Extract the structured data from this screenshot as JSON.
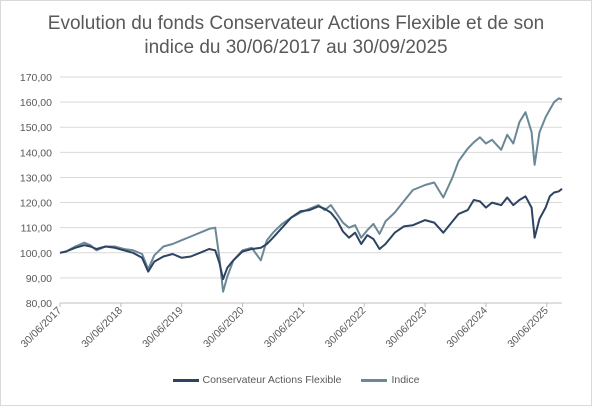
{
  "chart_data": {
    "type": "line",
    "title_line1": "Evolution du fonds Conservateur Actions Flexible et de son",
    "title_line2": "indice du 30/06/2017 au 30/09/2025",
    "x_ticks": [
      "30/06/2017",
      "30/06/2018",
      "30/06/2019",
      "30/06/2020",
      "30/06/2021",
      "30/06/2022",
      "30/06/2023",
      "30/06/2024",
      "30/06/2025"
    ],
    "y_ticks": [
      "80,00",
      "90,00",
      "100,00",
      "110,00",
      "120,00",
      "130,00",
      "140,00",
      "150,00",
      "160,00",
      "170,00"
    ],
    "ylim": [
      80,
      170
    ],
    "xlim": [
      2017.5,
      2025.75
    ],
    "grid": true,
    "legend_position": "bottom",
    "series": [
      {
        "name": "Conservateur Actions Flexible",
        "color": "#2e4361",
        "points": [
          [
            2017.5,
            100.0
          ],
          [
            2017.6,
            100.5
          ],
          [
            2017.75,
            102.0
          ],
          [
            2017.9,
            103.0
          ],
          [
            2018.0,
            102.5
          ],
          [
            2018.1,
            101.5
          ],
          [
            2018.25,
            102.5
          ],
          [
            2018.4,
            102.0
          ],
          [
            2018.55,
            101.0
          ],
          [
            2018.7,
            100.0
          ],
          [
            2018.85,
            98.0
          ],
          [
            2018.95,
            92.5
          ],
          [
            2019.05,
            96.5
          ],
          [
            2019.2,
            98.5
          ],
          [
            2019.35,
            99.5
          ],
          [
            2019.5,
            98.0
          ],
          [
            2019.65,
            98.5
          ],
          [
            2019.8,
            100.0
          ],
          [
            2019.95,
            101.5
          ],
          [
            2020.05,
            101.0
          ],
          [
            2020.12,
            96.0
          ],
          [
            2020.18,
            89.5
          ],
          [
            2020.25,
            94.0
          ],
          [
            2020.35,
            97.0
          ],
          [
            2020.5,
            100.5
          ],
          [
            2020.65,
            101.5
          ],
          [
            2020.8,
            102.0
          ],
          [
            2020.9,
            103.5
          ],
          [
            2021.0,
            106.0
          ],
          [
            2021.15,
            110.0
          ],
          [
            2021.3,
            114.0
          ],
          [
            2021.45,
            116.5
          ],
          [
            2021.6,
            117.0
          ],
          [
            2021.75,
            118.5
          ],
          [
            2021.85,
            117.5
          ],
          [
            2021.95,
            116.0
          ],
          [
            2022.05,
            113.0
          ],
          [
            2022.15,
            108.5
          ],
          [
            2022.25,
            106.0
          ],
          [
            2022.35,
            108.0
          ],
          [
            2022.45,
            103.5
          ],
          [
            2022.55,
            107.0
          ],
          [
            2022.65,
            105.5
          ],
          [
            2022.75,
            101.5
          ],
          [
            2022.85,
            103.5
          ],
          [
            2023.0,
            108.0
          ],
          [
            2023.15,
            110.5
          ],
          [
            2023.3,
            111.0
          ],
          [
            2023.5,
            113.0
          ],
          [
            2023.65,
            112.0
          ],
          [
            2023.8,
            108.0
          ],
          [
            2023.95,
            112.5
          ],
          [
            2024.05,
            115.5
          ],
          [
            2024.2,
            117.0
          ],
          [
            2024.3,
            121.0
          ],
          [
            2024.4,
            120.5
          ],
          [
            2024.5,
            118.0
          ],
          [
            2024.6,
            120.0
          ],
          [
            2024.75,
            119.0
          ],
          [
            2024.85,
            122.0
          ],
          [
            2024.95,
            119.0
          ],
          [
            2025.05,
            121.0
          ],
          [
            2025.15,
            122.5
          ],
          [
            2025.25,
            118.0
          ],
          [
            2025.3,
            106.0
          ],
          [
            2025.38,
            113.5
          ],
          [
            2025.48,
            118.0
          ],
          [
            2025.55,
            122.5
          ],
          [
            2025.62,
            124.0
          ],
          [
            2025.7,
            124.5
          ],
          [
            2025.75,
            125.5
          ]
        ]
      },
      {
        "name": "Indice",
        "color": "#6a8895",
        "points": [
          [
            2017.5,
            100.0
          ],
          [
            2017.6,
            100.5
          ],
          [
            2017.75,
            102.5
          ],
          [
            2017.9,
            104.0
          ],
          [
            2018.0,
            103.0
          ],
          [
            2018.1,
            101.0
          ],
          [
            2018.25,
            102.5
          ],
          [
            2018.4,
            102.5
          ],
          [
            2018.55,
            101.5
          ],
          [
            2018.7,
            101.0
          ],
          [
            2018.85,
            99.5
          ],
          [
            2018.95,
            93.5
          ],
          [
            2019.05,
            99.0
          ],
          [
            2019.2,
            102.5
          ],
          [
            2019.35,
            103.5
          ],
          [
            2019.5,
            105.0
          ],
          [
            2019.65,
            106.5
          ],
          [
            2019.8,
            108.0
          ],
          [
            2019.95,
            109.5
          ],
          [
            2020.05,
            110.0
          ],
          [
            2020.12,
            98.0
          ],
          [
            2020.18,
            84.5
          ],
          [
            2020.25,
            90.5
          ],
          [
            2020.35,
            97.0
          ],
          [
            2020.5,
            101.0
          ],
          [
            2020.65,
            102.0
          ],
          [
            2020.8,
            97.0
          ],
          [
            2020.9,
            105.0
          ],
          [
            2021.0,
            108.0
          ],
          [
            2021.15,
            111.5
          ],
          [
            2021.3,
            114.0
          ],
          [
            2021.45,
            116.0
          ],
          [
            2021.6,
            117.5
          ],
          [
            2021.75,
            119.0
          ],
          [
            2021.85,
            117.0
          ],
          [
            2021.95,
            119.0
          ],
          [
            2022.05,
            115.5
          ],
          [
            2022.15,
            112.0
          ],
          [
            2022.25,
            110.0
          ],
          [
            2022.35,
            111.0
          ],
          [
            2022.45,
            106.0
          ],
          [
            2022.55,
            109.0
          ],
          [
            2022.65,
            111.5
          ],
          [
            2022.75,
            107.5
          ],
          [
            2022.85,
            112.5
          ],
          [
            2023.0,
            116.0
          ],
          [
            2023.15,
            120.5
          ],
          [
            2023.3,
            125.0
          ],
          [
            2023.5,
            127.0
          ],
          [
            2023.65,
            128.0
          ],
          [
            2023.8,
            122.0
          ],
          [
            2023.95,
            130.0
          ],
          [
            2024.05,
            136.5
          ],
          [
            2024.2,
            141.5
          ],
          [
            2024.3,
            144.0
          ],
          [
            2024.4,
            146.0
          ],
          [
            2024.5,
            143.5
          ],
          [
            2024.6,
            145.0
          ],
          [
            2024.75,
            141.0
          ],
          [
            2024.85,
            147.0
          ],
          [
            2024.95,
            143.5
          ],
          [
            2025.05,
            152.0
          ],
          [
            2025.15,
            156.0
          ],
          [
            2025.25,
            148.0
          ],
          [
            2025.3,
            135.0
          ],
          [
            2025.38,
            148.0
          ],
          [
            2025.48,
            154.0
          ],
          [
            2025.55,
            157.0
          ],
          [
            2025.62,
            160.0
          ],
          [
            2025.7,
            161.5
          ],
          [
            2025.75,
            161.0
          ]
        ]
      }
    ]
  }
}
